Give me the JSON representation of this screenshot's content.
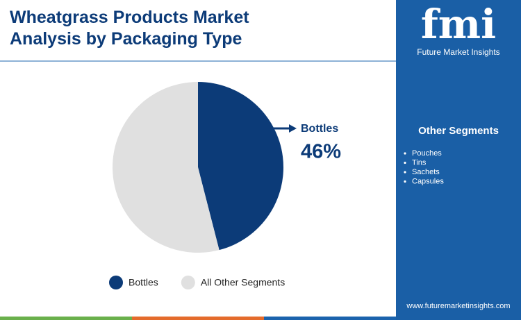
{
  "chart_data": {
    "type": "pie",
    "title": "Wheatgrass Products Market Analysis by Packaging Type",
    "categories": [
      "Bottles",
      "All Other Segments"
    ],
    "values": [
      46,
      54
    ],
    "value_labels": [
      "46%",
      null
    ],
    "colors": [
      "#0c3b78",
      "#e0e0e0"
    ]
  },
  "sidebar": {
    "logo": "fmi",
    "brand": "Future Market Insights",
    "heading": "Other Segments",
    "items": [
      "Pouches",
      "Tins",
      "Sachets",
      "Capsules"
    ],
    "website": "www.futuremarketinsights.com"
  }
}
